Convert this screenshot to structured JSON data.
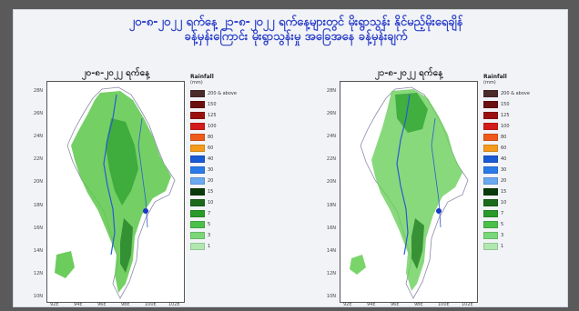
{
  "title": "၂၀-၈-၂၀၂၂ ရက်နေ့ ၂၁-၈-၂၀၂၂ ရက်နေ့များတွင် မိုးရွာသွန်း နိုင်မည့်မိုးရေချိန်\nခန့်မှန်းကြောင်း မိုးရွာသွန်းမှု အခြေအနေ ခန့်မှန်းချက်",
  "panels": [
    {
      "title": "၂၀-၈-၂၀၂၂ ရက်နေ့"
    },
    {
      "title": "၂၁-၈-၂၀၂၂ ရက်နေ့"
    }
  ],
  "y_ticks": [
    "28N",
    "26N",
    "24N",
    "22N",
    "20N",
    "18N",
    "16N",
    "14N",
    "12N",
    "10N"
  ],
  "x_ticks": [
    "92E",
    "94E",
    "96E",
    "98E",
    "100E",
    "102E"
  ],
  "legend": {
    "title": "Rainfall",
    "unit": "(mm)",
    "items": [
      {
        "label": "200 & above",
        "color": "#4a2a2a"
      },
      {
        "label": "150",
        "color": "#6b0f0f"
      },
      {
        "label": "125",
        "color": "#9a1010"
      },
      {
        "label": "100",
        "color": "#d41a1a"
      },
      {
        "label": "80",
        "color": "#ee5a1a"
      },
      {
        "label": "60",
        "color": "#f59a1a"
      },
      {
        "label": "40",
        "color": "#1a5ad4"
      },
      {
        "label": "30",
        "color": "#2a7ae8"
      },
      {
        "label": "20",
        "color": "#6aa8f0"
      },
      {
        "label": "15",
        "color": "#0a3a0a"
      },
      {
        "label": "10",
        "color": "#1a6a1a"
      },
      {
        "label": "7",
        "color": "#2a9a2a"
      },
      {
        "label": "5",
        "color": "#4ac04a"
      },
      {
        "label": "3",
        "color": "#7ad87a"
      },
      {
        "label": "1",
        "color": "#b0e8b0"
      }
    ]
  },
  "colors": {
    "title": "#2b3fc8",
    "land_rain": "#5cc84a",
    "land_rain_dark": "#2e8a2e",
    "rivers": "#2a5ad4",
    "border": "#8a8aa8"
  }
}
